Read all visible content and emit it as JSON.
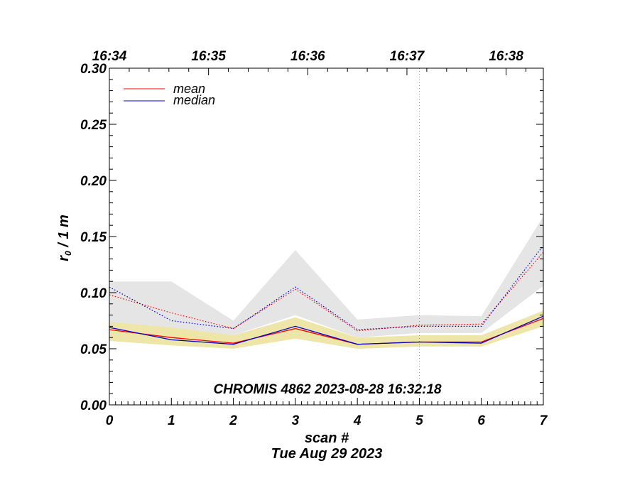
{
  "chart_data": {
    "type": "line",
    "xlabel": "scan #",
    "ylabel_main": "r",
    "ylabel_sub": "0",
    "ylabel_rest": " / 1 m",
    "date_label": "Tue Aug 29 2023",
    "annotation": "CHROMIS 4862 2023-08-28 16:32:18",
    "xlim": [
      0,
      7
    ],
    "ylim": [
      0.0,
      0.3
    ],
    "x_ticks": [
      "0",
      "1",
      "2",
      "3",
      "4",
      "5",
      "6",
      "7"
    ],
    "y_ticks": [
      "0.00",
      "0.05",
      "0.10",
      "0.15",
      "0.20",
      "0.25",
      "0.30"
    ],
    "top_axis": {
      "ticks": [
        {
          "label": "16:34",
          "x": 0.0
        },
        {
          "label": "16:35",
          "x": 1.6
        },
        {
          "label": "16:36",
          "x": 3.2
        },
        {
          "label": "16:37",
          "x": 4.8
        },
        {
          "label": "16:38",
          "x": 6.4
        }
      ]
    },
    "vline_x": 5,
    "x": [
      0,
      1,
      2,
      3,
      4,
      5,
      6,
      7
    ],
    "series": [
      {
        "name": "mean",
        "color": "#ff0000",
        "style": "solid",
        "values": [
          0.067,
          0.06,
          0.055,
          0.068,
          0.054,
          0.056,
          0.056,
          0.077
        ]
      },
      {
        "name": "median",
        "color": "#0000cc",
        "style": "solid",
        "values": [
          0.069,
          0.058,
          0.054,
          0.07,
          0.054,
          0.056,
          0.055,
          0.079
        ]
      },
      {
        "color": "#ff0000",
        "style": "dotted",
        "values": [
          0.098,
          0.082,
          0.068,
          0.103,
          0.066,
          0.071,
          0.072,
          0.136
        ]
      },
      {
        "color": "#0000cc",
        "style": "dotted",
        "values": [
          0.105,
          0.075,
          0.068,
          0.105,
          0.067,
          0.07,
          0.07,
          0.142
        ]
      }
    ],
    "bands": [
      {
        "color": "#e5e5e5",
        "upper": [
          0.11,
          0.11,
          0.075,
          0.138,
          0.076,
          0.08,
          0.079,
          0.168
        ],
        "lower": [
          0.074,
          0.068,
          0.062,
          0.08,
          0.06,
          0.064,
          0.064,
          0.106
        ]
      },
      {
        "color": "#ede6a8",
        "upper": [
          0.074,
          0.069,
          0.062,
          0.078,
          0.06,
          0.062,
          0.062,
          0.084
        ],
        "lower": [
          0.057,
          0.053,
          0.05,
          0.059,
          0.05,
          0.052,
          0.052,
          0.07
        ]
      }
    ],
    "legend": {
      "placement": "top-left"
    },
    "grid": false
  }
}
